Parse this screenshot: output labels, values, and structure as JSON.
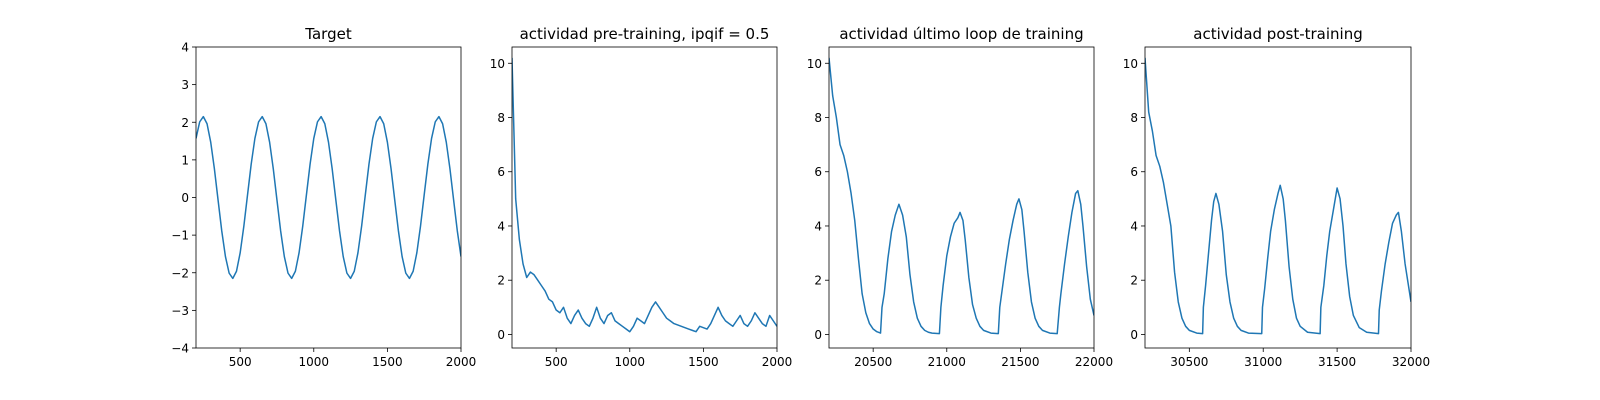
{
  "chart_data": [
    {
      "type": "line",
      "title": "Target",
      "color": "#1f77b4",
      "x": [
        200,
        225,
        250,
        275,
        300,
        325,
        350,
        375,
        400,
        425,
        450,
        475,
        500,
        525,
        550,
        575,
        600,
        625,
        650,
        675,
        700,
        725,
        750,
        775,
        800,
        825,
        850,
        875,
        900,
        925,
        950,
        975,
        1000,
        1025,
        1050,
        1075,
        1100,
        1125,
        1150,
        1175,
        1200,
        1225,
        1250,
        1275,
        1300,
        1325,
        1350,
        1375,
        1400,
        1425,
        1450,
        1475,
        1500,
        1525,
        1550,
        1575,
        1600,
        1625,
        1650,
        1675,
        1700,
        1725,
        1750,
        1775,
        1800,
        1825,
        1850,
        1875,
        1900,
        1925,
        1950,
        1975,
        2000
      ],
      "values": [
        1.57,
        2.01,
        2.15,
        1.96,
        1.47,
        0.76,
        -0.07,
        -0.89,
        -1.57,
        -2.01,
        -2.15,
        -1.96,
        -1.47,
        -0.76,
        0.07,
        0.89,
        1.57,
        2.01,
        2.15,
        1.96,
        1.47,
        0.76,
        -0.07,
        -0.89,
        -1.57,
        -2.01,
        -2.15,
        -1.96,
        -1.47,
        -0.76,
        0.07,
        0.89,
        1.57,
        2.01,
        2.15,
        1.96,
        1.47,
        0.76,
        -0.07,
        -0.89,
        -1.57,
        -2.01,
        -2.15,
        -1.96,
        -1.47,
        -0.76,
        0.07,
        0.89,
        1.57,
        2.01,
        2.15,
        1.96,
        1.47,
        0.76,
        -0.07,
        -0.89,
        -1.57,
        -2.01,
        -2.15,
        -1.96,
        -1.47,
        -0.76,
        0.07,
        0.89,
        1.57,
        2.01,
        2.15,
        1.96,
        1.47,
        0.76,
        -0.07,
        -0.89,
        -1.57
      ],
      "xlim": [
        200,
        2000
      ],
      "xticks": [
        500,
        1000,
        1500,
        2000
      ],
      "ylim": [
        -4,
        4
      ],
      "yticks": [
        {
          "value": -4,
          "label": "−4"
        },
        {
          "value": -3,
          "label": "−3"
        },
        {
          "value": -2,
          "label": "−2"
        },
        {
          "value": -1,
          "label": "−1"
        },
        0,
        1,
        2,
        3,
        4
      ]
    },
    {
      "type": "line",
      "title": "actividad pre-training, ipqif = 0.5",
      "color": "#1f77b4",
      "x": [
        200,
        225,
        250,
        275,
        300,
        325,
        350,
        375,
        400,
        425,
        450,
        475,
        500,
        525,
        550,
        575,
        600,
        625,
        650,
        675,
        700,
        725,
        750,
        775,
        800,
        825,
        850,
        875,
        900,
        925,
        950,
        975,
        1000,
        1025,
        1050,
        1075,
        1100,
        1125,
        1150,
        1175,
        1200,
        1225,
        1250,
        1275,
        1300,
        1325,
        1350,
        1375,
        1400,
        1425,
        1450,
        1475,
        1500,
        1525,
        1550,
        1575,
        1600,
        1625,
        1650,
        1675,
        1700,
        1725,
        1750,
        1775,
        1800,
        1825,
        1850,
        1875,
        1900,
        1925,
        1950,
        1975,
        2000
      ],
      "values": [
        10.2,
        5.0,
        3.5,
        2.6,
        2.1,
        2.3,
        2.2,
        2.0,
        1.8,
        1.6,
        1.3,
        1.2,
        0.9,
        0.8,
        1.0,
        0.6,
        0.4,
        0.7,
        0.9,
        0.6,
        0.4,
        0.3,
        0.6,
        1.0,
        0.6,
        0.4,
        0.7,
        0.8,
        0.5,
        0.4,
        0.3,
        0.2,
        0.1,
        0.3,
        0.6,
        0.5,
        0.4,
        0.7,
        1.0,
        1.2,
        1.0,
        0.8,
        0.6,
        0.5,
        0.4,
        0.35,
        0.3,
        0.25,
        0.2,
        0.15,
        0.1,
        0.3,
        0.25,
        0.2,
        0.4,
        0.7,
        1.0,
        0.7,
        0.5,
        0.4,
        0.3,
        0.5,
        0.7,
        0.4,
        0.3,
        0.5,
        0.8,
        0.6,
        0.4,
        0.3,
        0.7,
        0.5,
        0.3
      ],
      "xlim": [
        200,
        2000
      ],
      "xticks": [
        500,
        1000,
        1500,
        2000
      ],
      "ylim": [
        -0.5,
        10.6
      ],
      "yticks": [
        0,
        2,
        4,
        6,
        8,
        10
      ]
    },
    {
      "type": "line",
      "title": "actividad último loop de training",
      "color": "#1f77b4",
      "x": [
        20200,
        20225,
        20250,
        20275,
        20300,
        20325,
        20350,
        20375,
        20400,
        20425,
        20450,
        20475,
        20500,
        20525,
        20550,
        20560,
        20575,
        20600,
        20625,
        20650,
        20675,
        20700,
        20725,
        20750,
        20775,
        20800,
        20825,
        20850,
        20875,
        20900,
        20950,
        20960,
        20975,
        21000,
        21025,
        21050,
        21075,
        21090,
        21110,
        21125,
        21150,
        21175,
        21200,
        21225,
        21250,
        21300,
        21350,
        21360,
        21375,
        21400,
        21425,
        21450,
        21475,
        21490,
        21510,
        21525,
        21550,
        21575,
        21600,
        21625,
        21650,
        21700,
        21750,
        21765,
        21775,
        21800,
        21825,
        21850,
        21875,
        21890,
        21910,
        21925,
        21950,
        21975,
        22000
      ],
      "values": [
        10.2,
        8.8,
        8.0,
        7.0,
        6.6,
        6.0,
        5.2,
        4.2,
        2.8,
        1.5,
        0.8,
        0.4,
        0.2,
        0.1,
        0.05,
        1.0,
        1.5,
        2.8,
        3.8,
        4.4,
        4.8,
        4.4,
        3.6,
        2.2,
        1.2,
        0.6,
        0.3,
        0.15,
        0.08,
        0.05,
        0.03,
        1.0,
        1.8,
        2.9,
        3.6,
        4.1,
        4.3,
        4.5,
        4.2,
        3.5,
        2.1,
        1.1,
        0.6,
        0.3,
        0.15,
        0.05,
        0.03,
        1.0,
        1.6,
        2.6,
        3.5,
        4.2,
        4.8,
        5.0,
        4.6,
        3.8,
        2.3,
        1.2,
        0.6,
        0.3,
        0.15,
        0.05,
        0.03,
        1.0,
        1.5,
        2.6,
        3.6,
        4.5,
        5.2,
        5.3,
        4.8,
        4.0,
        2.5,
        1.3,
        0.7
      ],
      "xlim": [
        20200,
        22000
      ],
      "xticks": [
        20500,
        21000,
        21500,
        22000
      ],
      "ylim": [
        -0.5,
        10.6
      ],
      "yticks": [
        0,
        2,
        4,
        6,
        8,
        10
      ]
    },
    {
      "type": "line",
      "title": "actividad post-training",
      "color": "#1f77b4",
      "x": [
        30200,
        30225,
        30250,
        30275,
        30300,
        30325,
        30350,
        30375,
        30400,
        30425,
        30450,
        30475,
        30500,
        30550,
        30590,
        30595,
        30610,
        30630,
        30650,
        30665,
        30680,
        30700,
        30725,
        30750,
        30775,
        30800,
        30825,
        30850,
        30900,
        30990,
        30995,
        31010,
        31030,
        31050,
        31075,
        31100,
        31115,
        31135,
        31150,
        31175,
        31200,
        31225,
        31250,
        31300,
        31385,
        31390,
        31410,
        31430,
        31450,
        31475,
        31500,
        31520,
        31540,
        31560,
        31585,
        31610,
        31650,
        31700,
        31780,
        31785,
        31800,
        31825,
        31850,
        31875,
        31900,
        31915,
        31935,
        31960,
        31980,
        32000
      ],
      "values": [
        10.2,
        8.2,
        7.5,
        6.6,
        6.2,
        5.6,
        4.8,
        4.0,
        2.3,
        1.2,
        0.6,
        0.3,
        0.15,
        0.05,
        0.03,
        1.0,
        1.8,
        3.0,
        4.2,
        4.9,
        5.2,
        4.8,
        3.8,
        2.2,
        1.2,
        0.6,
        0.3,
        0.15,
        0.05,
        0.03,
        1.0,
        1.7,
        2.8,
        3.8,
        4.6,
        5.2,
        5.5,
        5.0,
        4.2,
        2.5,
        1.3,
        0.6,
        0.3,
        0.08,
        0.03,
        1.0,
        1.8,
        2.9,
        3.8,
        4.6,
        5.4,
        5.0,
        4.0,
        2.6,
        1.4,
        0.7,
        0.25,
        0.08,
        0.03,
        0.9,
        1.6,
        2.6,
        3.4,
        4.1,
        4.4,
        4.5,
        3.8,
        2.6,
        1.9,
        1.2
      ],
      "xlim": [
        30200,
        32000
      ],
      "xticks": [
        30500,
        31000,
        31500,
        32000
      ],
      "ylim": [
        -0.5,
        10.6
      ],
      "yticks": [
        0,
        2,
        4,
        6,
        8,
        10
      ]
    }
  ]
}
